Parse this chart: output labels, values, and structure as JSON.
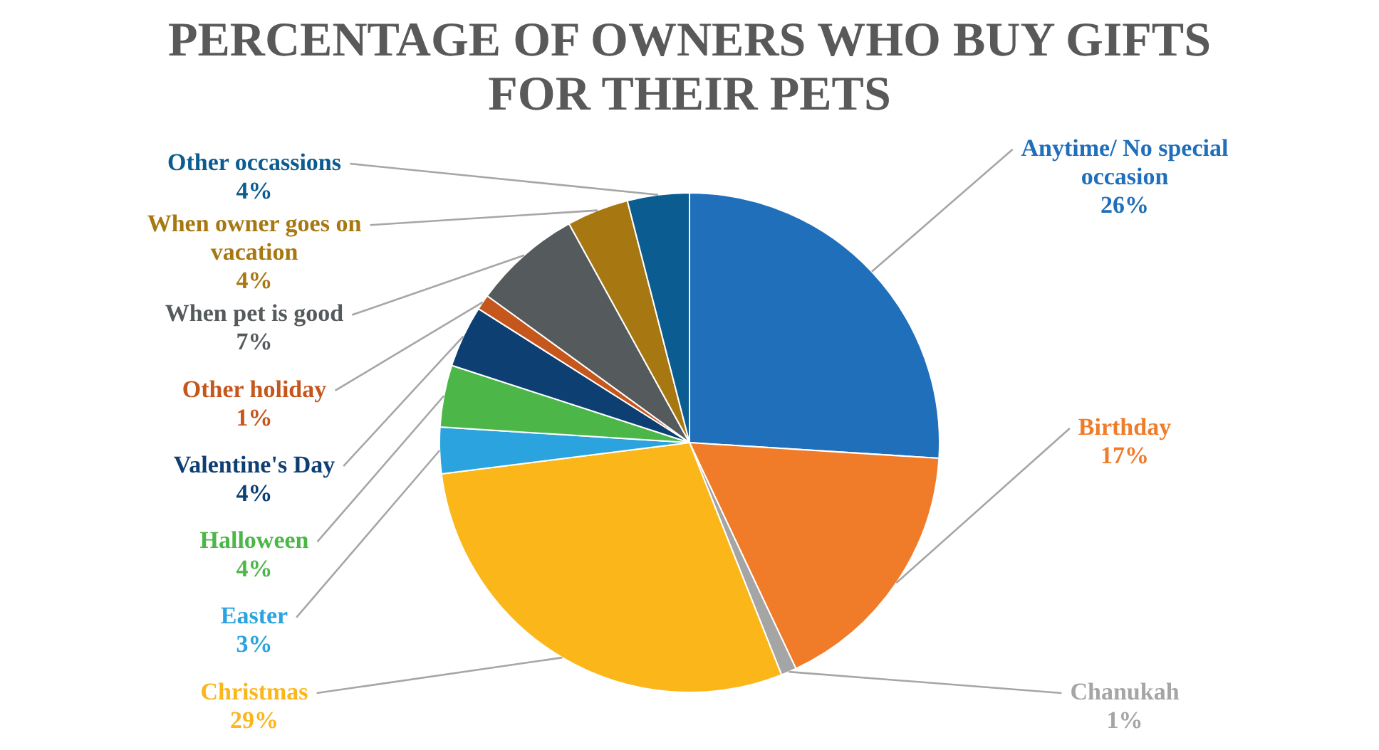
{
  "chart_data": {
    "type": "pie",
    "title": "PERCENTAGE OF OWNERS WHO BUY GIFTS FOR THEIR PETS",
    "categories": [
      "Anytime/ No special occasion",
      "Birthday",
      "Chanukah",
      "Christmas",
      "Easter",
      "Halloween",
      "Valentine's Day",
      "Other holiday",
      "When pet is good",
      "When owner goes on vacation",
      "Other occassions"
    ],
    "values": [
      26,
      17,
      1,
      29,
      3,
      4,
      4,
      1,
      7,
      4,
      4
    ],
    "value_labels": [
      "26%",
      "17%",
      "1%",
      "29%",
      "3%",
      "4%",
      "4%",
      "1%",
      "7%",
      "4%",
      "4%"
    ],
    "colors": [
      "#1f6fba",
      "#f07c2a",
      "#a5a5a5",
      "#fbb61a",
      "#2aa3de",
      "#4cb748",
      "#0e3f73",
      "#c5561c",
      "#555a5c",
      "#a77812",
      "#0b5c90"
    ],
    "legend": false
  }
}
